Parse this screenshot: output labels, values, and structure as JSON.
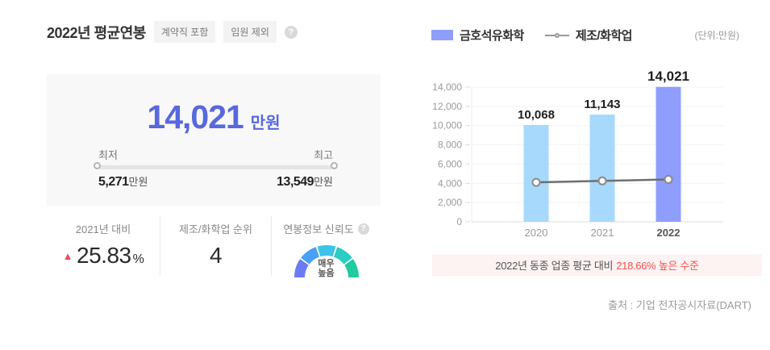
{
  "left_panel": {
    "title": "2022년 평균연봉",
    "tags": [
      "계약직 포함",
      "임원 제외"
    ],
    "help_icon": "?",
    "summary": {
      "amount": "14,021",
      "unit": "만원",
      "range": {
        "min_label": "최저",
        "max_label": "최고",
        "min_value": "5,271",
        "min_unit": "만원",
        "max_value": "13,549",
        "max_unit": "만원"
      }
    },
    "stats": {
      "yoy": {
        "label": "2021년 대비",
        "trend_icon": "▲",
        "value": "25.83",
        "unit": "%"
      },
      "rank": {
        "label": "제조/화학업 순위",
        "value": "4"
      },
      "reliability": {
        "label": "연봉정보 신뢰도",
        "level_line1": "매우",
        "level_line2": "높음",
        "gauge_colors": [
          "#6d7bf3",
          "#49a0f4",
          "#3cc3e8",
          "#2accc4",
          "#1fcb9f"
        ]
      }
    }
  },
  "right_panel": {
    "legend": {
      "company": "금호석유화학",
      "industry": "제조/화학업",
      "unit_note": "(단위:만원)"
    },
    "note": {
      "prefix": "2022년 동종 업종 평균 대비",
      "highlight": "218.66% 높은 수준"
    },
    "source": "출처 : 기업 전자공시자료(DART)"
  },
  "chart_data": {
    "type": "bar",
    "categories": [
      "2020",
      "2021",
      "2022"
    ],
    "series": [
      {
        "name": "금호석유화학",
        "type": "bar",
        "values": [
          10068,
          11143,
          14021
        ],
        "value_labels": [
          "10,068",
          "11,143",
          "14,021"
        ],
        "bar_colors": [
          "#a7d9fc",
          "#a7d9fc",
          "#8f9dfc"
        ]
      },
      {
        "name": "제조/화학업",
        "type": "line",
        "values": [
          4100,
          4250,
          4400
        ]
      }
    ],
    "title": "",
    "xlabel": "",
    "ylabel": "",
    "unit": "만원",
    "ylim": [
      0,
      14000
    ],
    "ytick_step": 2000,
    "grid": true,
    "legend_position": "top",
    "highlight_category": "2022"
  },
  "colors": {
    "accent_blue": "#5868dd",
    "bar_default": "#a7d9fc",
    "bar_highlight": "#8f9dfc",
    "industry_line": "#6f6f6f",
    "trend_up": "#ee4a5b",
    "note_red": "#f6514f",
    "note_bg": "#fdf3f3"
  }
}
